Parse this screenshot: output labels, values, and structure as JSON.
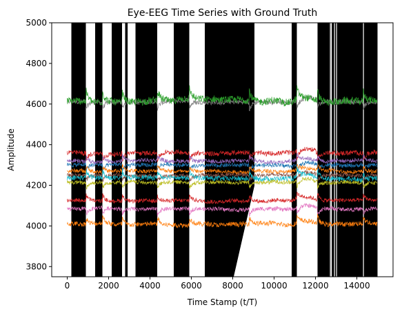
{
  "chart_data": {
    "type": "line",
    "title": "Eye-EEG Time Series with Ground Truth",
    "xlabel": "Time Stamp (t/T)",
    "ylabel": "Amplitude",
    "xlim": [
      -750,
      15750
    ],
    "ylim": [
      3750,
      5000
    ],
    "xticks": [
      0,
      2000,
      4000,
      6000,
      8000,
      10000,
      12000,
      14000
    ],
    "yticks": [
      3800,
      4000,
      4200,
      4400,
      4600,
      4800,
      5000
    ],
    "grid": false,
    "legend": "none",
    "ground_truth": {
      "description_color": "#000000",
      "label_1_intervals": [
        [
          200,
          900
        ],
        [
          1350,
          1700
        ],
        [
          2150,
          2650
        ],
        [
          2800,
          2920
        ],
        [
          3300,
          4350
        ],
        [
          5150,
          5900
        ],
        [
          6650,
          8050
        ],
        [
          8050,
          9050
        ],
        [
          10850,
          11100
        ],
        [
          12100,
          15000
        ]
      ],
      "white_gaps_in_last_interval": [
        12700,
        12750,
        12900,
        13000,
        14300
      ]
    },
    "series": [
      {
        "color": "#7f7f7f",
        "baseline": 4610,
        "noise": 12
      },
      {
        "color": "#2ca02c",
        "baseline": 4615,
        "noise": 18
      },
      {
        "color": "#d62728",
        "baseline": 4360,
        "noise": 12
      },
      {
        "color": "#9467bd",
        "baseline": 4320,
        "noise": 10
      },
      {
        "color": "#1f77b4",
        "baseline": 4300,
        "noise": 10
      },
      {
        "color": "#ff7f0e",
        "baseline": 4270,
        "noise": 10
      },
      {
        "color": "#8c564b",
        "baseline": 4250,
        "noise": 10
      },
      {
        "color": "#17becf",
        "baseline": 4235,
        "noise": 12
      },
      {
        "color": "#bcbd22",
        "baseline": 4215,
        "noise": 10
      },
      {
        "color": "#d62728",
        "baseline": 4125,
        "noise": 10
      },
      {
        "color": "#e377c2",
        "baseline": 4085,
        "noise": 10
      },
      {
        "color": "#ff7f0e",
        "baseline": 4010,
        "noise": 12
      }
    ]
  }
}
